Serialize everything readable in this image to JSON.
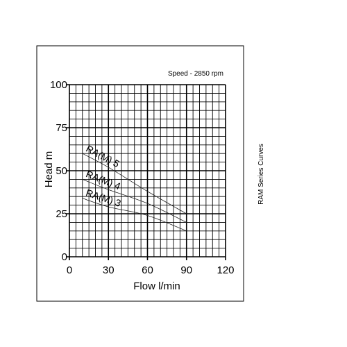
{
  "chart_data": {
    "type": "line",
    "annotation": "Speed - 2850 rpm",
    "side_title": "RAM Series Curves",
    "xlabel": "Flow l/min",
    "ylabel": "Head m",
    "xlim": [
      0,
      120
    ],
    "ylim": [
      0,
      100
    ],
    "x_ticks": [
      0,
      30,
      60,
      90,
      120
    ],
    "y_ticks": [
      0,
      25,
      50,
      75,
      100
    ],
    "x_tick_labels": [
      "0",
      "30",
      "60",
      "90",
      "120"
    ],
    "y_tick_labels": [
      "0",
      "25",
      "50",
      "75",
      "100"
    ],
    "grid": true,
    "series": [
      {
        "name": "RA(M) 5",
        "x": [
          10,
          30,
          60,
          90
        ],
        "y": [
          60,
          52,
          38,
          25
        ]
      },
      {
        "name": "RA(M) 4",
        "x": [
          10,
          30,
          60,
          90
        ],
        "y": [
          45,
          39,
          31,
          20
        ]
      },
      {
        "name": "RA(M) 3",
        "x": [
          10,
          30,
          60,
          90
        ],
        "y": [
          34,
          29,
          24,
          15
        ]
      }
    ]
  }
}
